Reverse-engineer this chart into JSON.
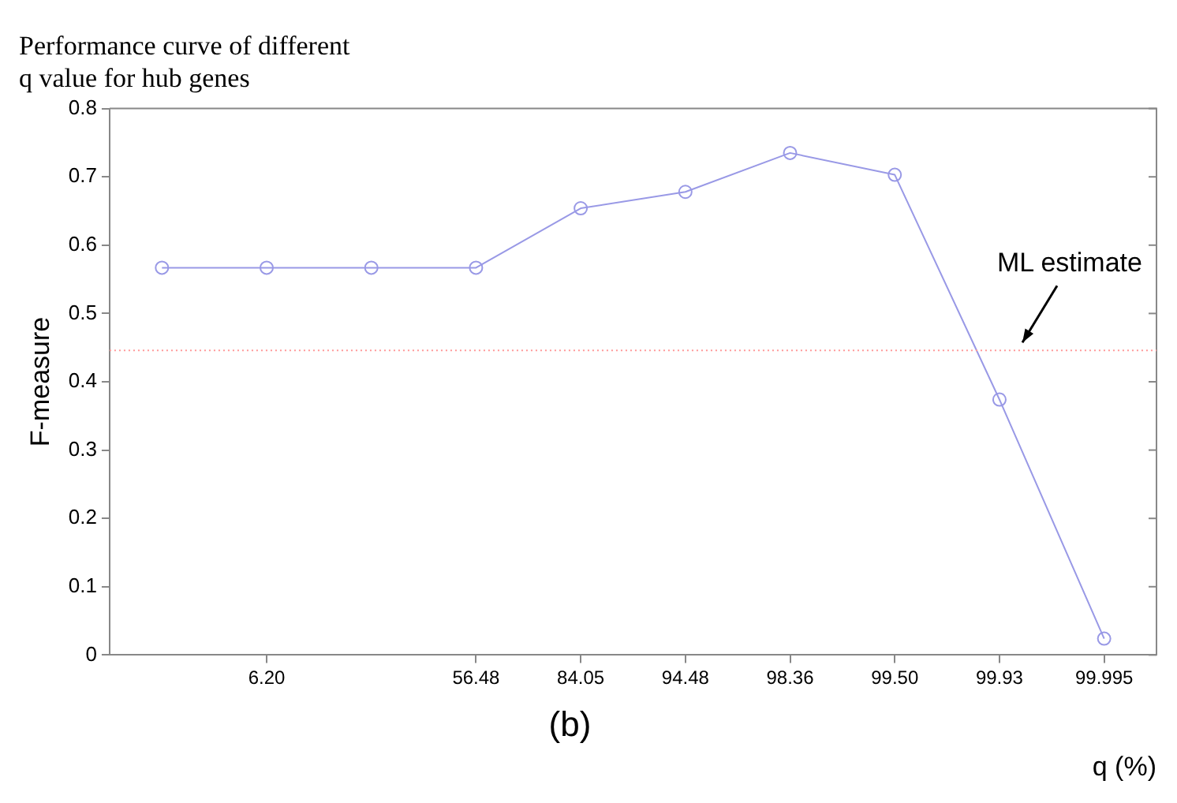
{
  "chart_data": {
    "type": "line",
    "title": "Performance curve of different\nq value for hub genes",
    "xlabel": "q (%)",
    "ylabel": "F-measure",
    "categories": [
      null,
      "6.20",
      null,
      "56.48",
      "84.05",
      "94.48",
      "98.36",
      "99.50",
      "99.93",
      "99.995"
    ],
    "series": [
      {
        "color": "#9999e6",
        "values": [
          0.567,
          0.567,
          0.567,
          0.567,
          0.654,
          0.678,
          0.735,
          0.703,
          0.374,
          0.024
        ]
      }
    ],
    "ylim": [
      0,
      0.8
    ],
    "yticks": [
      0,
      0.1,
      0.2,
      0.3,
      0.4,
      0.5,
      0.6,
      0.7,
      0.8
    ],
    "ref_lines": [
      {
        "axis": "y",
        "value": 0.446,
        "label": "ML estimate",
        "color": "#ff9999",
        "line_style": "dotted"
      }
    ],
    "annotations": [
      "(b)"
    ],
    "marker": "circle",
    "line_style": "solid",
    "grid": false,
    "legend": false
  }
}
